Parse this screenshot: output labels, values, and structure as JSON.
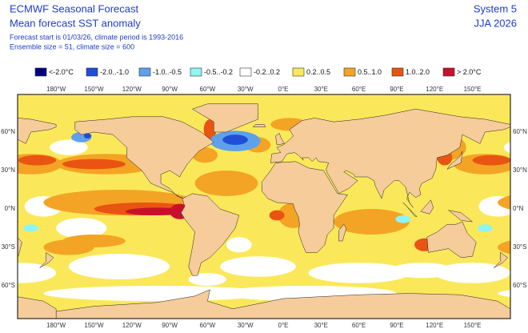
{
  "header": {
    "title": "ECMWF Seasonal Forecast",
    "subtitle": "Mean forecast SST anomaly",
    "line1": "Forecast start is 01/03/26, climate period is 1993-2016",
    "line2": "Ensemble size = 51, climate size = 600",
    "system": "System 5",
    "season": "JJA 2026"
  },
  "legend": {
    "items": [
      {
        "label": "<-2.0°C",
        "color": "#00007f"
      },
      {
        "label": "-2.0..-1.0",
        "color": "#1f4fd6"
      },
      {
        "label": "-1.0..-0.5",
        "color": "#5fa0ec"
      },
      {
        "label": "-0.5..-0.2",
        "color": "#8ff4f4"
      },
      {
        "label": "-0.2..0.2",
        "color": "#ffffff"
      },
      {
        "label": "0.2..0.5",
        "color": "#fbe85a"
      },
      {
        "label": "0.5..1.0",
        "color": "#f4a424"
      },
      {
        "label": "1.0..2.0",
        "color": "#ea5412"
      },
      {
        "label": "> 2.0°C",
        "color": "#c8102c"
      }
    ]
  },
  "map": {
    "lon_labels": [
      "180°W",
      "150°W",
      "120°W",
      "90°W",
      "60°W",
      "30°W",
      "0°E",
      "30°E",
      "60°E",
      "90°E",
      "120°E",
      "150°E"
    ],
    "lat_labels": [
      "60°N",
      "30°N",
      "0°N",
      "30°S",
      "60°S"
    ]
  }
}
